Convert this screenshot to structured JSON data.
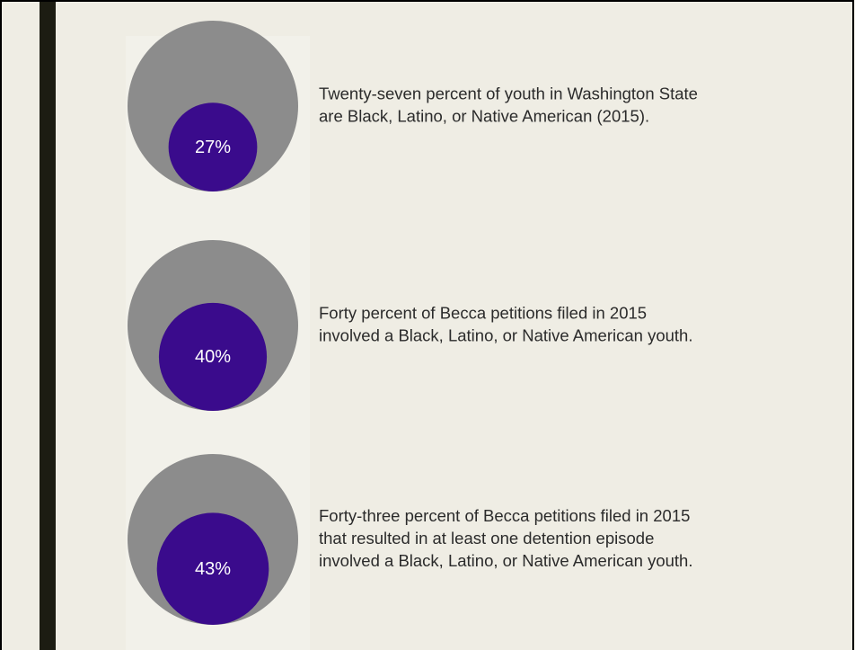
{
  "items": [
    {
      "value": 27,
      "label": "27%",
      "text": [
        "Twenty-seven percent of youth in Washington State",
        "are Black, Latino, or Native American (2015)."
      ]
    },
    {
      "value": 40,
      "label": "40%",
      "text": [
        "Forty percent of Becca petitions filed in 2015",
        "involved a Black, Latino, or Native American youth."
      ]
    },
    {
      "value": 43,
      "label": "43%",
      "text": [
        "Forty-three percent of Becca petitions filed in 2015",
        "that resulted in at least one detention episode",
        "involved a Black, Latino, or Native American youth."
      ]
    }
  ]
}
